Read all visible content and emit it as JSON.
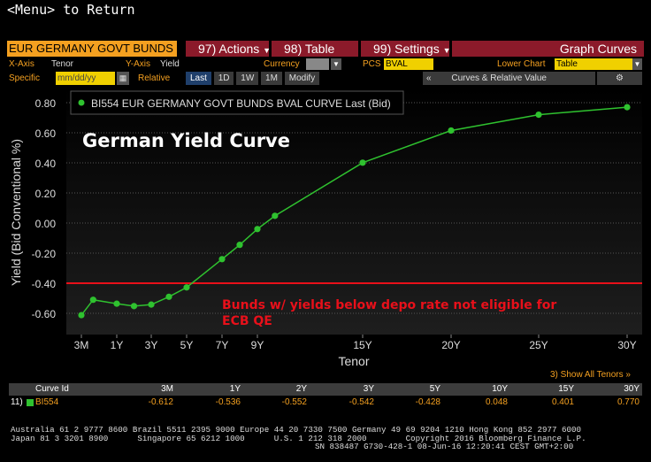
{
  "header": {
    "menu_return": "<Menu> to Return",
    "security": "EUR GERMANY GOVT BUNDS B",
    "actions_num": "97)",
    "actions_label": "Actions",
    "table_num": "98)",
    "table_label": "Table",
    "settings_num": "99)",
    "settings_label": "Settings",
    "graph_curves": "Graph Curves"
  },
  "controls": {
    "xaxis_label": "X-Axis",
    "xaxis_value": "Tenor",
    "yaxis_label": "Y-Axis",
    "yaxis_value": "Yield",
    "currency_label": "Currency",
    "pcs_label": "PCS",
    "pcs_value": "BVAL",
    "lower_chart_label": "Lower Chart",
    "lower_chart_value": "Table",
    "specific_label": "Specific",
    "date_placeholder": "mm/dd/yy",
    "relative_label": "Relative",
    "periods": [
      "Last",
      "1D",
      "1W",
      "1M"
    ],
    "modify_label": "Modify",
    "curves_relative_label": "Curves & Relative Value"
  },
  "colors": {
    "accent": "#f4a020",
    "series": "#2fc22f",
    "annotation": "#e8101a",
    "panel": "#8b1a2a"
  },
  "chart_data": {
    "type": "line",
    "title": "German Yield Curve",
    "xlabel": "Tenor",
    "ylabel": "Yield (Bid Conventional %)",
    "ylim": [
      -0.7,
      0.85
    ],
    "yticks": [
      0.8,
      0.6,
      0.4,
      0.2,
      0.0,
      -0.2,
      -0.4,
      -0.6
    ],
    "ytick_labels": [
      "0.80",
      "0.60",
      "0.40",
      "0.20",
      "0.00",
      "-0.20",
      "-0.40",
      "-0.60"
    ],
    "xtick_years": [
      0.25,
      1,
      3,
      5,
      7,
      9,
      15,
      20,
      25,
      30
    ],
    "xtick_labels": [
      "3M",
      "1Y",
      "3Y",
      "5Y",
      "7Y",
      "9Y",
      "15Y",
      "20Y",
      "25Y",
      "30Y"
    ],
    "grid": true,
    "legend_position": "top-left",
    "series": [
      {
        "name": "BI554 EUR GERMANY GOVT BUNDS BVAL CURVE Last (Bid)",
        "points": [
          {
            "x": 0.25,
            "y": -0.612
          },
          {
            "x": 0.5,
            "y": -0.51
          },
          {
            "x": 1,
            "y": -0.536
          },
          {
            "x": 2,
            "y": -0.552
          },
          {
            "x": 3,
            "y": -0.542
          },
          {
            "x": 4,
            "y": -0.49
          },
          {
            "x": 5,
            "y": -0.428
          },
          {
            "x": 7,
            "y": -0.24
          },
          {
            "x": 8,
            "y": -0.145
          },
          {
            "x": 9,
            "y": -0.04
          },
          {
            "x": 10,
            "y": 0.048
          },
          {
            "x": 15,
            "y": 0.401
          },
          {
            "x": 20,
            "y": 0.615
          },
          {
            "x": 25,
            "y": 0.72
          },
          {
            "x": 30,
            "y": 0.77
          }
        ]
      }
    ],
    "reference_line": {
      "y": -0.4
    },
    "annotation_text": [
      "Bunds w/ yields below depo rate not eligible for",
      "ECB QE"
    ]
  },
  "table": {
    "show_all": "3) Show All Tenors »",
    "curve_id_header": "Curve Id",
    "headers": [
      "3M",
      "1Y",
      "2Y",
      "3Y",
      "5Y",
      "10Y",
      "15Y",
      "30Y"
    ],
    "row": {
      "index": "11)",
      "curve_id": "BI554",
      "values": [
        "-0.612",
        "-0.536",
        "-0.552",
        "-0.542",
        "-0.428",
        "0.048",
        "0.401",
        "0.770"
      ]
    }
  },
  "footer": {
    "line1": "Australia 61 2 9777 8600 Brazil 5511 2395 9000 Europe 44 20 7330 7500 Germany 49 69 9204 1210 Hong Kong 852 2977 6000",
    "line2": "Japan 81 3 3201 8900      Singapore 65 6212 1000      U.S. 1 212 318 2000        Copyright 2016 Bloomberg Finance L.P.",
    "line3": "SN 838487 G730-428-1 08-Jun-16 12:20:41 CEST GMT+2:00"
  }
}
